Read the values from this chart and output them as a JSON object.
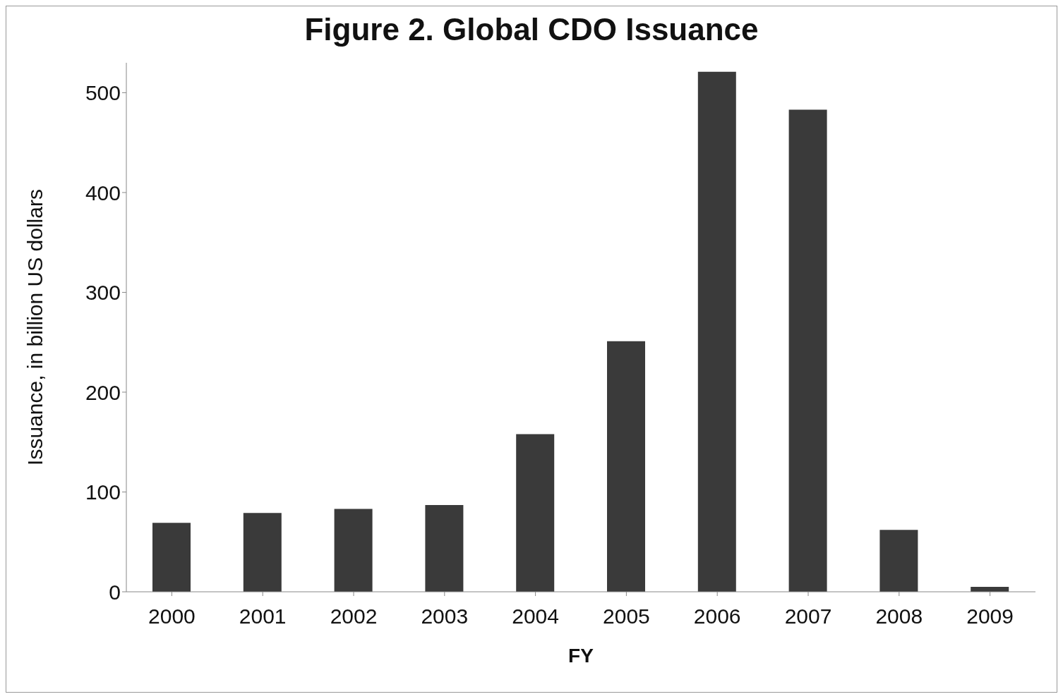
{
  "chart_data": {
    "type": "bar",
    "title": "Figure 2.  Global CDO Issuance",
    "xlabel": "FY",
    "ylabel": "Issuance, in billion US dollars",
    "categories": [
      "2000",
      "2001",
      "2002",
      "2003",
      "2004",
      "2005",
      "2006",
      "2007",
      "2008",
      "2009"
    ],
    "values": [
      69,
      79,
      83,
      87,
      158,
      251,
      521,
      483,
      62,
      5
    ],
    "color": "#3a3a3a",
    "ylim": [
      0,
      530
    ],
    "yticks": [
      0,
      100,
      200,
      300,
      400,
      500
    ],
    "grid": false
  }
}
